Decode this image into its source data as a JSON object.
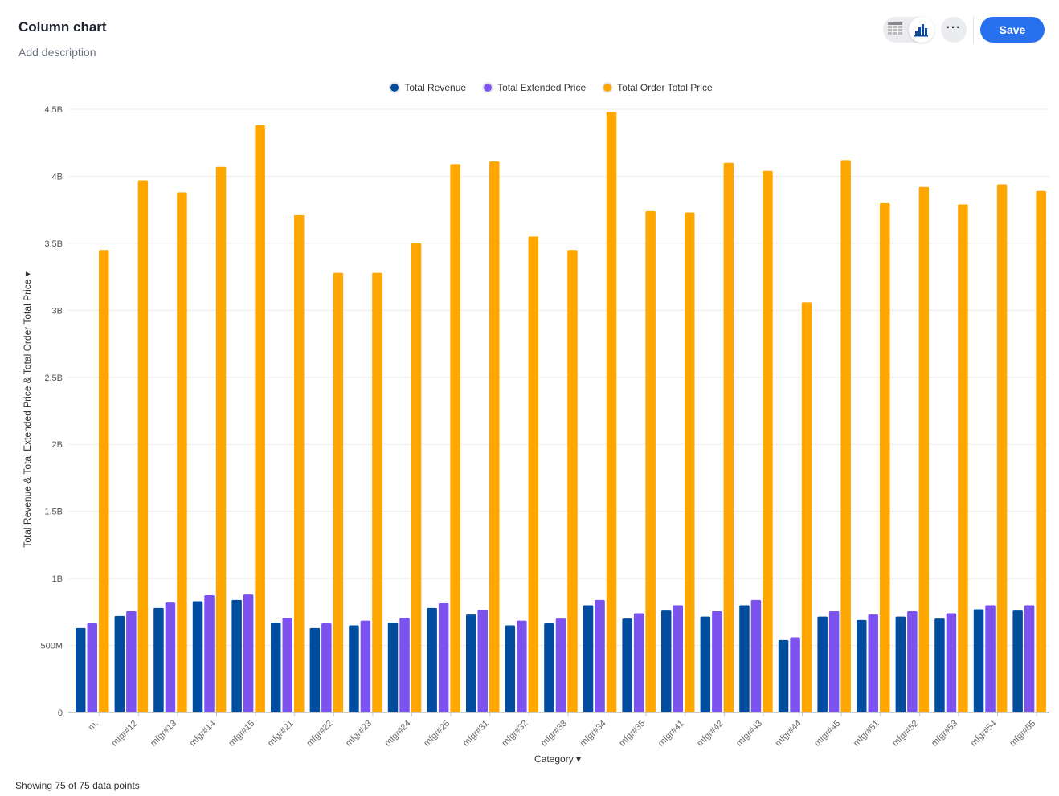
{
  "header": {
    "title": "Column chart",
    "description": "Add description",
    "save_label": "Save",
    "more_label": "···",
    "table_icon": "table-icon",
    "chart_icon": "bar-chart-icon"
  },
  "footer": {
    "text": "Showing 75 of 75 data points"
  },
  "chart_data": {
    "type": "bar",
    "xlabel": "Category ▾",
    "ylabel": "Total Revenue & Total Extended Price & Total Order Total Price ▾",
    "ylim": [
      0,
      4500000000
    ],
    "yticks": [
      "0",
      "500M",
      "1B",
      "1.5B",
      "2B",
      "2.5B",
      "3B",
      "3.5B",
      "4B",
      "4.5B"
    ],
    "grid": true,
    "legend_position": "top",
    "categories": [
      "m.",
      "mfgr#12",
      "mfgr#13",
      "mfgr#14",
      "mfgr#15",
      "mfgr#21",
      "mfgr#22",
      "mfgr#23",
      "mfgr#24",
      "mfgr#25",
      "mfgr#31",
      "mfgr#32",
      "mfgr#33",
      "mfgr#34",
      "mfgr#35",
      "mfgr#41",
      "mfgr#42",
      "mfgr#43",
      "mfgr#44",
      "mfgr#45",
      "mfgr#51",
      "mfgr#52",
      "mfgr#53",
      "mfgr#54",
      "mfgr#55"
    ],
    "series": [
      {
        "name": "Total Revenue",
        "color": "#004c9e",
        "values": [
          0.63,
          0.72,
          0.78,
          0.83,
          0.84,
          0.67,
          0.63,
          0.65,
          0.67,
          0.78,
          0.73,
          0.65,
          0.665,
          0.8,
          0.7,
          0.76,
          0.715,
          0.8,
          0.54,
          0.715,
          0.69,
          0.715,
          0.7,
          0.77,
          0.76
        ]
      },
      {
        "name": "Total Extended Price",
        "color": "#7c52ee",
        "values": [
          0.665,
          0.755,
          0.82,
          0.875,
          0.88,
          0.705,
          0.665,
          0.685,
          0.705,
          0.815,
          0.765,
          0.685,
          0.7,
          0.84,
          0.74,
          0.8,
          0.755,
          0.84,
          0.56,
          0.755,
          0.73,
          0.755,
          0.74,
          0.8,
          0.8
        ]
      },
      {
        "name": "Total Order Total Price",
        "color": "#ffa600",
        "values": [
          3.45,
          3.97,
          3.88,
          4.07,
          4.38,
          3.71,
          3.28,
          3.28,
          3.5,
          4.09,
          4.11,
          3.55,
          3.45,
          4.48,
          3.74,
          3.73,
          4.1,
          4.04,
          3.06,
          4.12,
          3.8,
          3.92,
          3.79,
          3.94,
          3.89
        ]
      }
    ],
    "value_unit": "billions"
  }
}
